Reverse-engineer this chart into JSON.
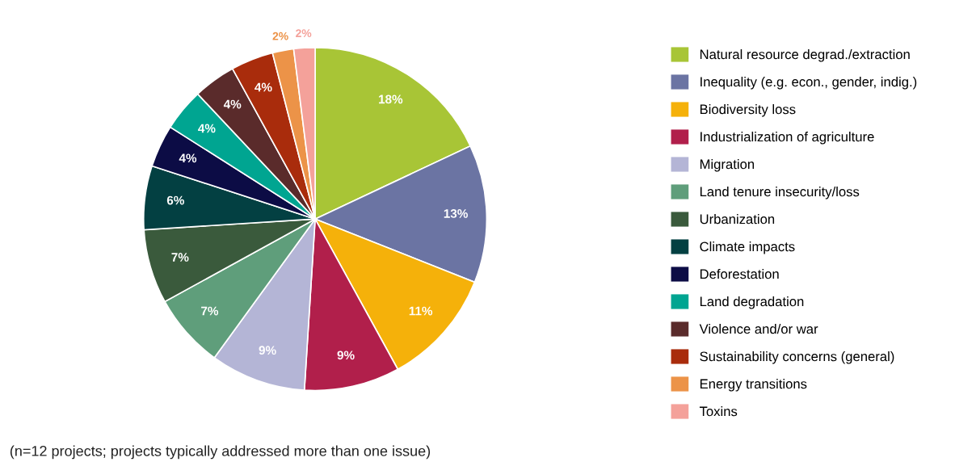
{
  "chart_data": {
    "type": "pie",
    "categories": [
      "Natural resource degrad./extraction",
      "Inequality (e.g. econ., gender, indig.)",
      "Biodiversity loss",
      "Industrialization of agriculture",
      "Migration",
      "Land tenure insecurity/loss",
      "Urbanization",
      "Climate impacts",
      "Deforestation",
      "Land degradation",
      "Violence and/or war",
      "Sustainability concerns (general)",
      "Energy transitions",
      "Toxins"
    ],
    "values": [
      18,
      13,
      11,
      9,
      9,
      7,
      7,
      6,
      4,
      4,
      4,
      4,
      2,
      2
    ],
    "value_labels": [
      "18%",
      "13%",
      "11%",
      "9%",
      "9%",
      "7%",
      "7%",
      "6%",
      "4%",
      "4%",
      "4%",
      "4%",
      "2%",
      "2%"
    ],
    "colors": [
      "#a8c536",
      "#6b74a3",
      "#f5b10a",
      "#b11f4b",
      "#b4b5d6",
      "#5f9e7b",
      "#3a5a3c",
      "#034042",
      "#0c0c45",
      "#00a591",
      "#5a2b2b",
      "#a92c0c",
      "#ec9348",
      "#f4a19a"
    ],
    "legend": "right",
    "annotations": [
      "(n=12 projects; projects typically addressed more than one issue)"
    ]
  }
}
